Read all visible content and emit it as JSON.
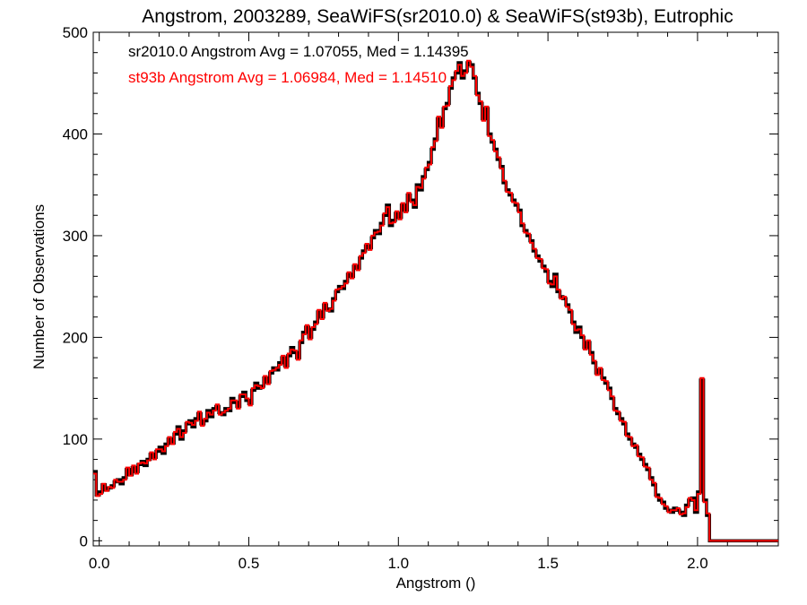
{
  "chart_data": {
    "type": "line",
    "step": true,
    "title": "Angstrom, 2003289, SeaWiFS(sr2010.0) & SeaWiFS(st93b), Eutrophic",
    "xlabel": "Angstrom ()",
    "ylabel": "Number of Observations",
    "xlim": [
      -0.02,
      2.27
    ],
    "ylim": [
      -5,
      500
    ],
    "xticks": [
      0.0,
      0.5,
      1.0,
      1.5,
      2.0
    ],
    "xtick_labels": [
      "0.0",
      "0.5",
      "1.0",
      "1.5",
      "2.0"
    ],
    "yticks": [
      0,
      100,
      200,
      300,
      400,
      500
    ],
    "ytick_labels": [
      "0",
      "100",
      "200",
      "300",
      "400",
      "500"
    ],
    "grid": false,
    "annotations": [
      {
        "text": "sr2010.0 Angstrom Avg = 1.07055, Med = 1.14395",
        "color": "#000000"
      },
      {
        "text": "st93b Angstrom Avg = 1.06984, Med = 1.14510",
        "color": "#ff0000"
      }
    ],
    "x_start": -0.02,
    "bin_width": 0.01,
    "series": [
      {
        "color": "#000000",
        "values": [
          68,
          45,
          48,
          55,
          50,
          52,
          54,
          58,
          60,
          56,
          62,
          70,
          65,
          72,
          68,
          75,
          78,
          74,
          80,
          85,
          82,
          88,
          92,
          86,
          95,
          100,
          96,
          105,
          112,
          100,
          108,
          115,
          118,
          112,
          120,
          125,
          115,
          118,
          128,
          122,
          130,
          132,
          126,
          124,
          130,
          128,
          140,
          136,
          132,
          142,
          146,
          138,
          135,
          148,
          155,
          150,
          152,
          160,
          156,
          165,
          170,
          168,
          175,
          180,
          172,
          182,
          190,
          185,
          180,
          195,
          205,
          210,
          200,
          208,
          215,
          225,
          220,
          232,
          228,
          226,
          238,
          245,
          250,
          248,
          255,
          262,
          260,
          270,
          268,
          278,
          285,
          290,
          288,
          298,
          305,
          302,
          312,
          320,
          330,
          310,
          315,
          322,
          318,
          330,
          325,
          340,
          335,
          328,
          350,
          345,
          358,
          365,
          372,
          385,
          395,
          415,
          408,
          425,
          430,
          445,
          455,
          460,
          470,
          455,
          462,
          470,
          468,
          455,
          440,
          430,
          415,
          425,
          400,
          392,
          385,
          375,
          368,
          352,
          345,
          340,
          335,
          330,
          325,
          310,
          305,
          300,
          295,
          285,
          280,
          275,
          270,
          265,
          255,
          250,
          262,
          245,
          240,
          238,
          232,
          225,
          215,
          205,
          210,
          200,
          190,
          195,
          185,
          175,
          165,
          168,
          160,
          155,
          150,
          140,
          130,
          125,
          120,
          115,
          105,
          100,
          95,
          92,
          85,
          80,
          75,
          70,
          62,
          55,
          45,
          40,
          38,
          32,
          30,
          28,
          32,
          30,
          28,
          25,
          35,
          40,
          42,
          28,
          48,
          158,
          40,
          25,
          0,
          0,
          0,
          0,
          0,
          0,
          0,
          0,
          0,
          0,
          0,
          0,
          0,
          0,
          0
        ]
      },
      {
        "color": "#ff0000",
        "values": [
          66,
          44,
          46,
          56,
          49,
          53,
          52,
          60,
          58,
          58,
          60,
          72,
          64,
          74,
          66,
          76,
          77,
          76,
          79,
          87,
          80,
          90,
          90,
          88,
          93,
          102,
          95,
          107,
          110,
          102,
          106,
          117,
          116,
          114,
          118,
          127,
          113,
          120,
          126,
          124,
          128,
          134,
          124,
          126,
          128,
          130,
          138,
          138,
          130,
          144,
          144,
          140,
          133,
          150,
          153,
          152,
          150,
          162,
          154,
          167,
          168,
          170,
          173,
          182,
          170,
          184,
          188,
          187,
          178,
          197,
          203,
          212,
          198,
          210,
          213,
          227,
          218,
          234,
          226,
          228,
          236,
          247,
          248,
          250,
          253,
          264,
          258,
          272,
          266,
          280,
          283,
          292,
          286,
          300,
          303,
          304,
          310,
          322,
          328,
          312,
          313,
          324,
          316,
          332,
          323,
          342,
          333,
          330,
          348,
          347,
          356,
          367,
          370,
          387,
          393,
          417,
          406,
          427,
          428,
          447,
          453,
          462,
          468,
          457,
          460,
          472,
          466,
          457,
          438,
          432,
          413,
          427,
          398,
          394,
          383,
          377,
          366,
          354,
          343,
          342,
          333,
          332,
          323,
          312,
          303,
          302,
          293,
          287,
          278,
          277,
          268,
          267,
          253,
          252,
          260,
          247,
          238,
          240,
          230,
          227,
          213,
          207,
          208,
          202,
          188,
          197,
          183,
          177,
          163,
          170,
          158,
          157,
          148,
          142,
          128,
          127,
          118,
          117,
          103,
          102,
          93,
          94,
          83,
          82,
          73,
          72,
          60,
          57,
          43,
          42,
          36,
          34,
          28,
          30,
          30,
          32,
          26,
          27,
          33,
          42,
          40,
          30,
          46,
          160,
          38,
          27,
          0,
          0,
          0,
          0,
          0,
          0,
          0,
          0,
          0,
          0,
          0,
          0,
          0,
          0,
          0
        ]
      }
    ]
  }
}
